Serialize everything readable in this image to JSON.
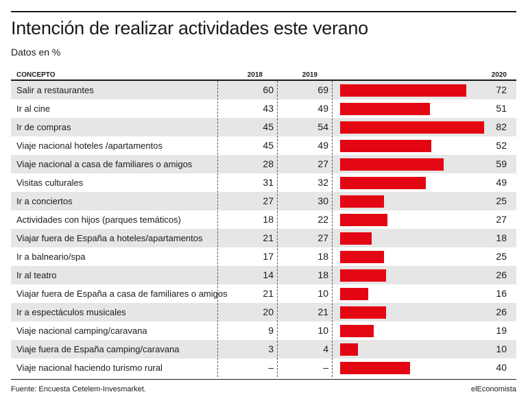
{
  "title": "Intención de realizar actividades este verano",
  "subtitle": "Datos en %",
  "headers": {
    "concept": "CONCEPTO",
    "y2018": "2018",
    "y2019": "2019",
    "y2020": "2020"
  },
  "footer": {
    "source": "Fuente: Encuesta Cetelem-Invesmarket.",
    "brand": "elEconomista"
  },
  "colors": {
    "bar": "#e30613",
    "row_shade": "#e6e6e6",
    "text": "#1a1a1a"
  },
  "chart_data": {
    "type": "table",
    "bar_series": "2020",
    "bar_max": 82,
    "columns": [
      "CONCEPTO",
      "2018",
      "2019",
      "2020"
    ],
    "rows": [
      {
        "label": "Salir a restaurantes",
        "y2018": "60",
        "y2019": "69",
        "y2020": 72
      },
      {
        "label": "Ir al cine",
        "y2018": "43",
        "y2019": "49",
        "y2020": 51
      },
      {
        "label": "Ir de compras",
        "y2018": "45",
        "y2019": "54",
        "y2020": 82
      },
      {
        "label": "Viaje nacional hoteles /apartamentos",
        "y2018": "45",
        "y2019": "49",
        "y2020": 52
      },
      {
        "label": "Viaje nacional a casa de familiares o amigos",
        "y2018": "28",
        "y2019": "27",
        "y2020": 59
      },
      {
        "label": "Visitas culturales",
        "y2018": "31",
        "y2019": "32",
        "y2020": 49
      },
      {
        "label": "Ir a conciertos",
        "y2018": "27",
        "y2019": "30",
        "y2020": 25
      },
      {
        "label": "Actividades con hijos (parques temáticos)",
        "y2018": "18",
        "y2019": "22",
        "y2020": 27
      },
      {
        "label": "Viajar fuera de España a hoteles/apartamentos",
        "y2018": "21",
        "y2019": "27",
        "y2020": 18
      },
      {
        "label": "Ir a balneario/spa",
        "y2018": "17",
        "y2019": "18",
        "y2020": 25
      },
      {
        "label": "Ir al teatro",
        "y2018": "14",
        "y2019": "18",
        "y2020": 26
      },
      {
        "label": "Viajar fuera de España a casa de familiares o amigos",
        "y2018": "21",
        "y2019": "10",
        "y2020": 16
      },
      {
        "label": "Ir a espectáculos musicales",
        "y2018": "20",
        "y2019": "21",
        "y2020": 26
      },
      {
        "label": "Viaje nacional camping/caravana",
        "y2018": "9",
        "y2019": "10",
        "y2020": 19
      },
      {
        "label": "Viaje fuera de España camping/caravana",
        "y2018": "3",
        "y2019": "4",
        "y2020": 10
      },
      {
        "label": "Viaje nacional haciendo turismo rural",
        "y2018": "–",
        "y2019": "–",
        "y2020": 40
      }
    ]
  }
}
